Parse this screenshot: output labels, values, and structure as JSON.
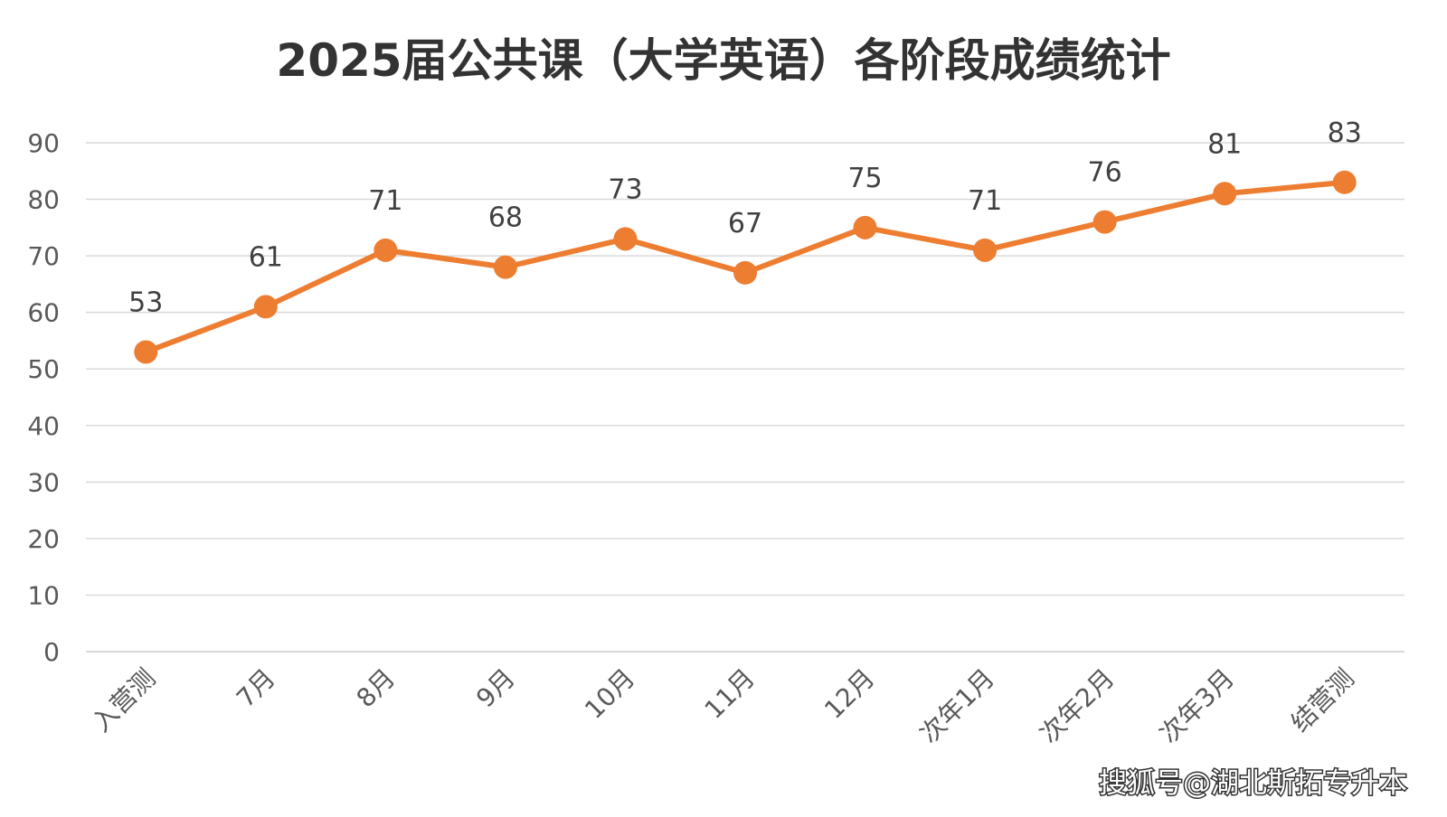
{
  "chart_data": {
    "type": "line",
    "title": "2025届公共课（大学英语）各阶段成绩统计",
    "categories": [
      "入营测",
      "7月",
      "8月",
      "9月",
      "10月",
      "11月",
      "12月",
      "次年1月",
      "次年2月",
      "次年3月",
      "结营测"
    ],
    "series": [
      {
        "values": [
          53,
          61,
          71,
          68,
          73,
          67,
          75,
          71,
          76,
          81,
          83
        ]
      }
    ],
    "ylim": [
      0,
      90
    ],
    "yticks": [
      0,
      10,
      20,
      30,
      40,
      50,
      60,
      70,
      80,
      90
    ],
    "grid": true,
    "data_labels": true,
    "line_color": "#ED7D31",
    "grid_color": "#D9D9D9"
  },
  "watermark": "搜狐号@湖北斯拓专升本"
}
